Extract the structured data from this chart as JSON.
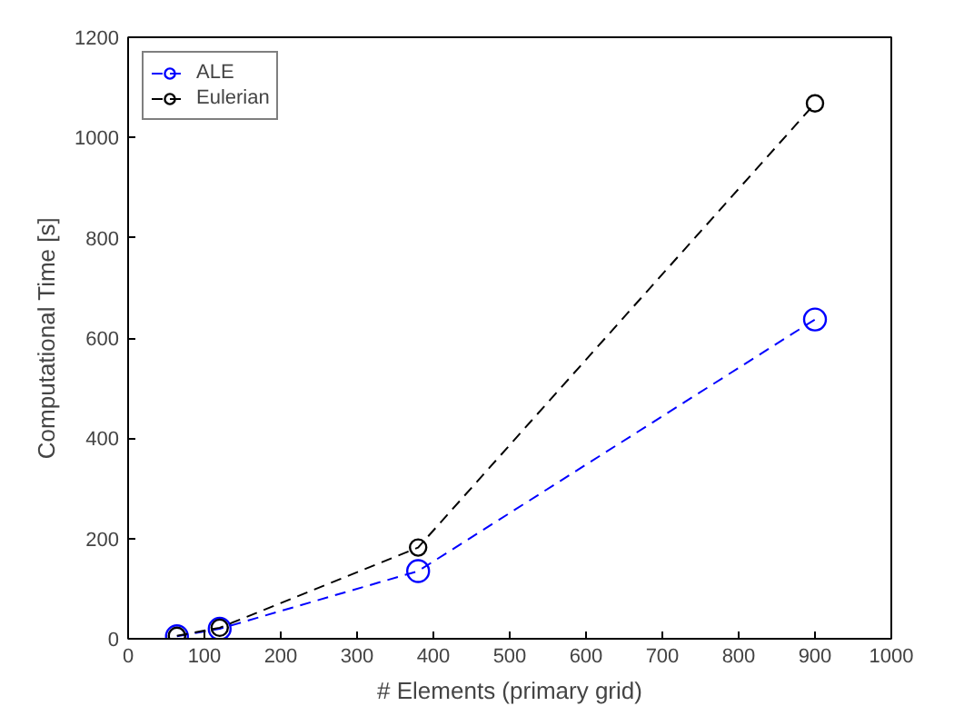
{
  "chart_data": {
    "type": "line",
    "xlabel": "# Elements (primary grid)",
    "ylabel": "Computational Time [s]",
    "x": [
      64,
      120,
      380,
      900
    ],
    "series": [
      {
        "name": "ALE",
        "color": "#0000ff",
        "values": [
          5,
          20,
          135,
          637
        ]
      },
      {
        "name": "Eulerian",
        "color": "#000000",
        "values": [
          6,
          22,
          182,
          1068
        ]
      }
    ],
    "xlim": [
      0,
      1000
    ],
    "ylim": [
      0,
      1200
    ],
    "xticks": [
      0,
      100,
      200,
      300,
      400,
      500,
      600,
      700,
      800,
      900,
      1000
    ],
    "yticks": [
      0,
      200,
      400,
      600,
      800,
      1000,
      1200
    ],
    "grid": false,
    "legend": "top left",
    "marker": "circle",
    "line_style": "dashed"
  }
}
